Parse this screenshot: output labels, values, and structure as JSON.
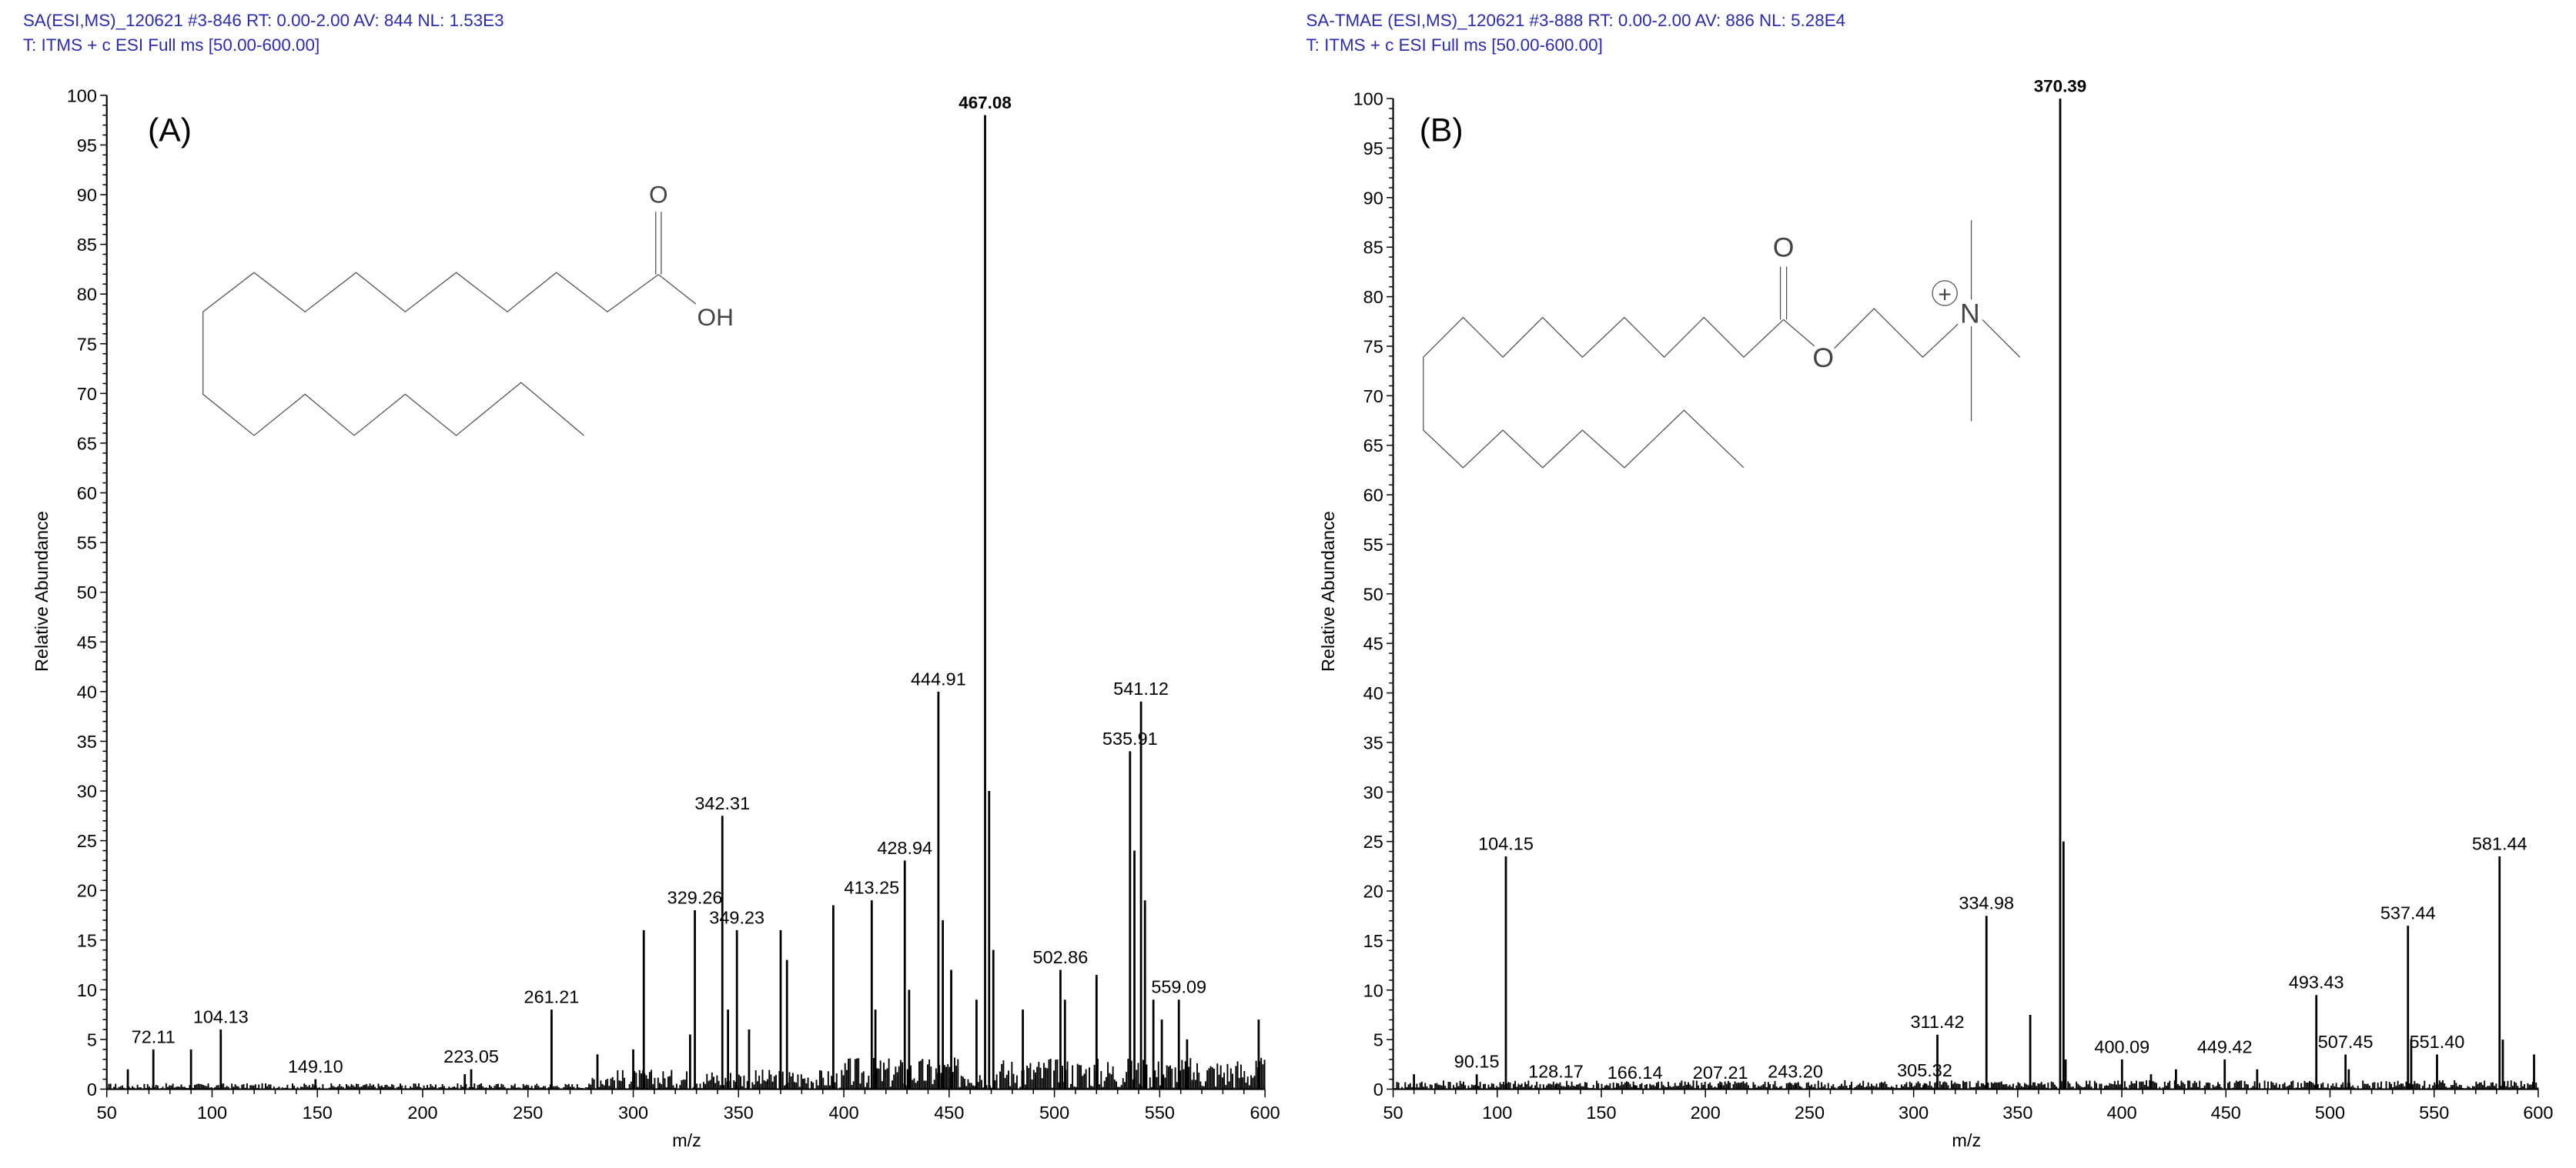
{
  "chart_data": [
    {
      "type": "bar",
      "panel_label": "(A)",
      "header_line1": "SA(ESI,MS)_120621 #3-846   RT: 0.00-2.00   AV: 844   NL: 1.53E3",
      "header_line2": "T: ITMS + c ESI Full ms [50.00-600.00]",
      "xlabel": "m/z",
      "ylabel": "Relative Abundance",
      "xlim": [
        50,
        600
      ],
      "ylim": [
        0,
        100
      ],
      "x_ticks": [
        50,
        100,
        150,
        200,
        250,
        300,
        350,
        400,
        450,
        500,
        550,
        600
      ],
      "y_ticks": [
        0,
        5,
        10,
        15,
        20,
        25,
        30,
        35,
        40,
        45,
        50,
        55,
        60,
        65,
        70,
        75,
        80,
        85,
        90,
        95,
        100
      ],
      "peaks": [
        {
          "mz": 72.11,
          "rel": 4.0,
          "label": "72.11"
        },
        {
          "mz": 104.13,
          "rel": 6.0,
          "label": "104.13"
        },
        {
          "mz": 149.1,
          "rel": 1.0,
          "label": "149.10"
        },
        {
          "mz": 223.05,
          "rel": 2.0,
          "label": "223.05"
        },
        {
          "mz": 261.21,
          "rel": 8.0,
          "label": "261.21"
        },
        {
          "mz": 329.26,
          "rel": 18.0,
          "label": "329.26"
        },
        {
          "mz": 342.31,
          "rel": 27.5,
          "label": "342.31"
        },
        {
          "mz": 349.23,
          "rel": 16.0,
          "label": "349.23"
        },
        {
          "mz": 413.25,
          "rel": 19.0,
          "label": "413.25"
        },
        {
          "mz": 428.94,
          "rel": 23.0,
          "label": "428.94"
        },
        {
          "mz": 444.91,
          "rel": 40.0,
          "label": "444.91"
        },
        {
          "mz": 467.08,
          "rel": 98.0,
          "label": "467.08",
          "base": true
        },
        {
          "mz": 502.86,
          "rel": 12.0,
          "label": "502.86"
        },
        {
          "mz": 535.91,
          "rel": 34.0,
          "label": "535.91"
        },
        {
          "mz": 541.12,
          "rel": 39.0,
          "label": "541.12"
        },
        {
          "mz": 559.09,
          "rel": 9.0,
          "label": "559.09"
        },
        {
          "mz": 60,
          "rel": 2.0
        },
        {
          "mz": 90,
          "rel": 4.0
        },
        {
          "mz": 220,
          "rel": 1.5
        },
        {
          "mz": 283,
          "rel": 3.5
        },
        {
          "mz": 300,
          "rel": 4.0
        },
        {
          "mz": 305,
          "rel": 16.0
        },
        {
          "mz": 327,
          "rel": 5.5
        },
        {
          "mz": 345,
          "rel": 8.0
        },
        {
          "mz": 355,
          "rel": 6.0
        },
        {
          "mz": 370,
          "rel": 16.0
        },
        {
          "mz": 373,
          "rel": 13.0
        },
        {
          "mz": 395,
          "rel": 18.5
        },
        {
          "mz": 415,
          "rel": 8.0
        },
        {
          "mz": 431,
          "rel": 10.0
        },
        {
          "mz": 447,
          "rel": 17.0
        },
        {
          "mz": 451,
          "rel": 12.0
        },
        {
          "mz": 463,
          "rel": 9.0
        },
        {
          "mz": 469,
          "rel": 30.0
        },
        {
          "mz": 471,
          "rel": 14.0
        },
        {
          "mz": 485,
          "rel": 8.0
        },
        {
          "mz": 505,
          "rel": 9.0
        },
        {
          "mz": 520,
          "rel": 11.5
        },
        {
          "mz": 538,
          "rel": 24.0
        },
        {
          "mz": 543,
          "rel": 19.0
        },
        {
          "mz": 547,
          "rel": 9.0
        },
        {
          "mz": 551,
          "rel": 7.0
        },
        {
          "mz": 563,
          "rel": 5.0
        },
        {
          "mz": 597,
          "rel": 7.0
        }
      ],
      "structure_labels": {
        "carbonyl_o": "O",
        "hydroxyl": "OH"
      }
    },
    {
      "type": "bar",
      "panel_label": "(B)",
      "header_line1": "SA-TMAE (ESI,MS)_120621 #3-888   RT: 0.00-2.00   AV: 886   NL: 5.28E4",
      "header_line2": "T: ITMS + c ESI Full ms [50.00-600.00]",
      "xlabel": "m/z",
      "ylabel": "Relative Abundance",
      "xlim": [
        50,
        600
      ],
      "ylim": [
        0,
        100
      ],
      "x_ticks": [
        50,
        100,
        150,
        200,
        250,
        300,
        350,
        400,
        450,
        500,
        550,
        600
      ],
      "y_ticks": [
        0,
        5,
        10,
        15,
        20,
        25,
        30,
        35,
        40,
        45,
        50,
        55,
        60,
        65,
        70,
        75,
        80,
        85,
        90,
        95,
        100
      ],
      "peaks": [
        {
          "mz": 90.15,
          "rel": 1.5,
          "label": "90.15"
        },
        {
          "mz": 104.15,
          "rel": 23.5,
          "label": "104.15"
        },
        {
          "mz": 128.17,
          "rel": 0.5,
          "label": "128.17"
        },
        {
          "mz": 166.14,
          "rel": 0.4,
          "label": "166.14"
        },
        {
          "mz": 207.21,
          "rel": 0.4,
          "label": "207.21"
        },
        {
          "mz": 243.2,
          "rel": 0.5,
          "label": "243.20"
        },
        {
          "mz": 305.32,
          "rel": 0.6,
          "label": "305.32"
        },
        {
          "mz": 311.42,
          "rel": 5.5,
          "label": "311.42"
        },
        {
          "mz": 334.98,
          "rel": 17.5,
          "label": "334.98"
        },
        {
          "mz": 370.39,
          "rel": 100,
          "label": "370.39",
          "base": true
        },
        {
          "mz": 400.09,
          "rel": 3.0,
          "label": "400.09"
        },
        {
          "mz": 449.42,
          "rel": 3.0,
          "label": "449.42"
        },
        {
          "mz": 493.43,
          "rel": 9.5,
          "label": "493.43"
        },
        {
          "mz": 507.45,
          "rel": 3.5,
          "label": "507.45"
        },
        {
          "mz": 537.44,
          "rel": 16.5,
          "label": "537.44"
        },
        {
          "mz": 551.4,
          "rel": 3.5,
          "label": "551.40"
        },
        {
          "mz": 581.44,
          "rel": 23.5,
          "label": "581.44"
        },
        {
          "mz": 60,
          "rel": 1.5
        },
        {
          "mz": 356,
          "rel": 7.5
        },
        {
          "mz": 372,
          "rel": 25.0
        },
        {
          "mz": 373,
          "rel": 3.0
        },
        {
          "mz": 414,
          "rel": 1.5
        },
        {
          "mz": 426,
          "rel": 2.0
        },
        {
          "mz": 465,
          "rel": 2.0
        },
        {
          "mz": 509,
          "rel": 2.0
        },
        {
          "mz": 539,
          "rel": 5.0
        },
        {
          "mz": 583,
          "rel": 5.0
        },
        {
          "mz": 598,
          "rel": 3.5
        }
      ],
      "structure_labels": {
        "carbonyl_o": "O",
        "ester_o": "O",
        "nitrogen": "N",
        "charge": "+"
      }
    }
  ]
}
